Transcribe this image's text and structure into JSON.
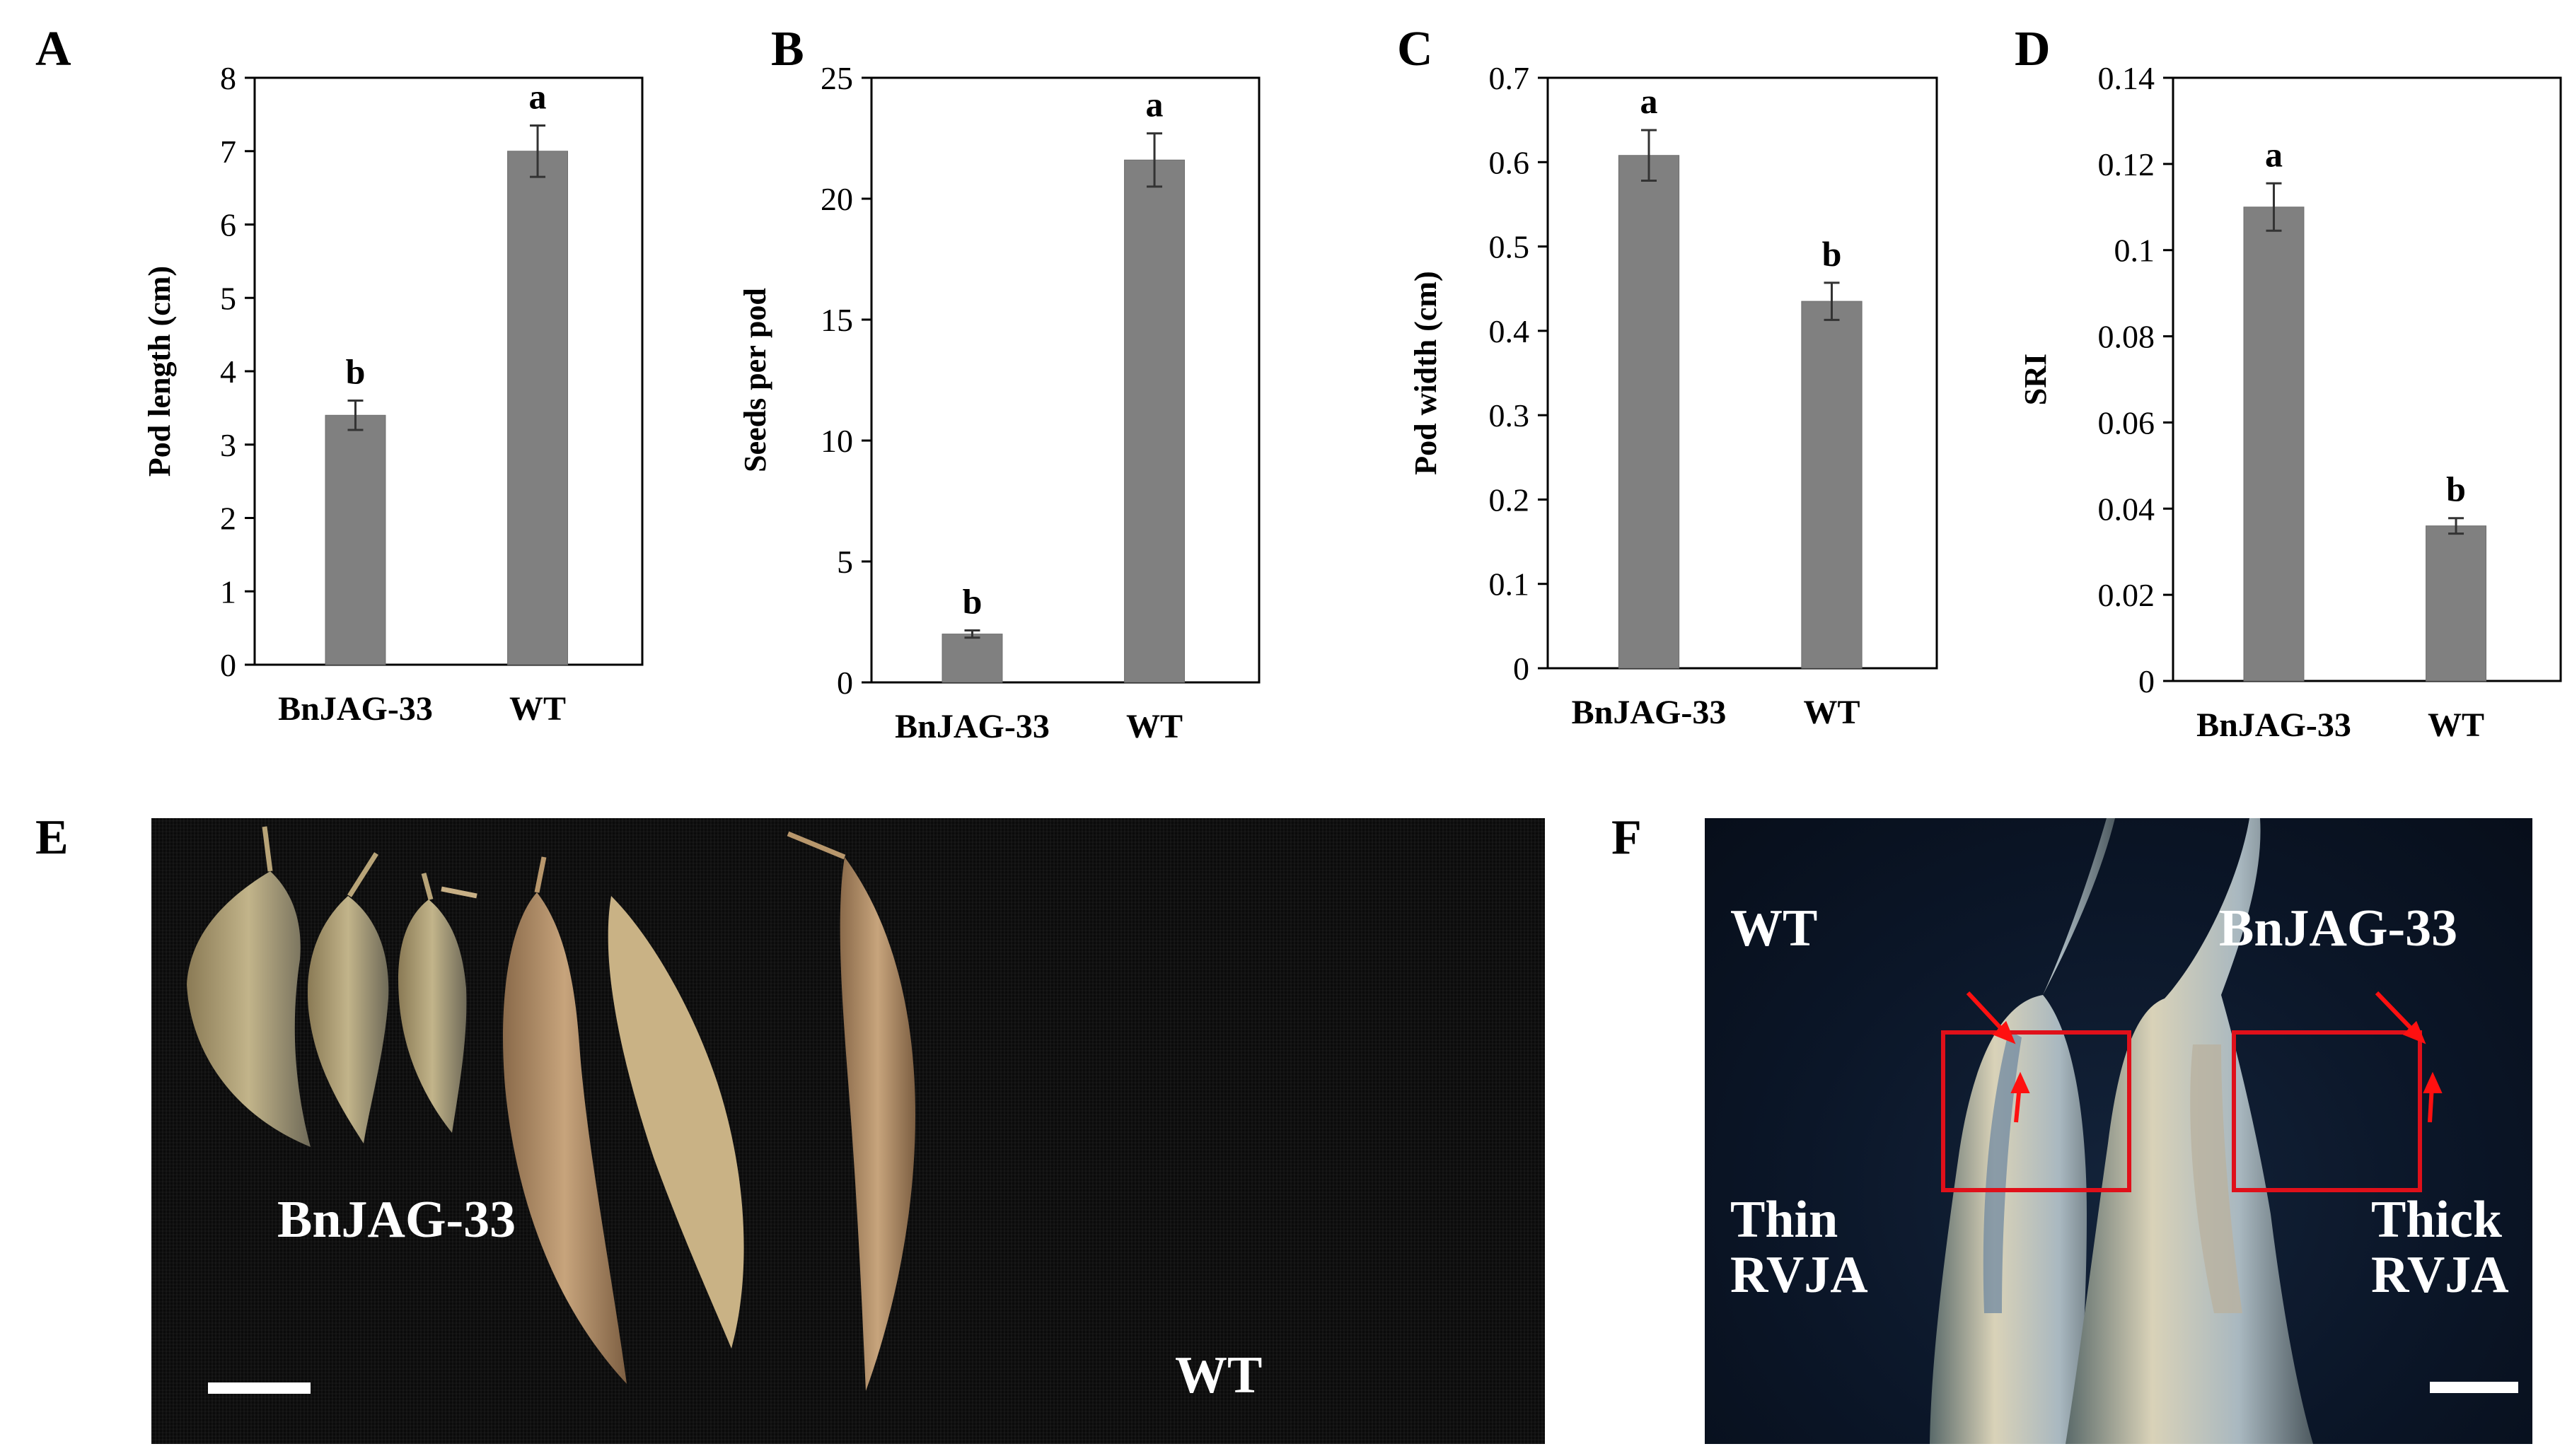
{
  "chart_data": [
    {
      "type": "bar",
      "panel": "A",
      "categories": [
        "BnJAG-33",
        "WT"
      ],
      "values": [
        3.4,
        7.0
      ],
      "errors": [
        0.2,
        0.35
      ],
      "significance": [
        "b",
        "a"
      ],
      "ylabel": "Pod length (cm)",
      "ylim": [
        0,
        8
      ],
      "yticks": [
        "0",
        "1",
        "2",
        "3",
        "4",
        "5",
        "6",
        "7",
        "8"
      ],
      "bar_color": "#808080"
    },
    {
      "type": "bar",
      "panel": "B",
      "categories": [
        "BnJAG-33",
        "WT"
      ],
      "values": [
        2.0,
        21.6
      ],
      "errors": [
        0.15,
        1.1
      ],
      "significance": [
        "b",
        "a"
      ],
      "ylabel": "Seeds per pod",
      "ylim": [
        0,
        25
      ],
      "yticks": [
        "0",
        "5",
        "10",
        "15",
        "20",
        "25"
      ],
      "bar_color": "#808080"
    },
    {
      "type": "bar",
      "panel": "C",
      "categories": [
        "BnJAG-33",
        "WT"
      ],
      "values": [
        0.608,
        0.435
      ],
      "errors": [
        0.03,
        0.022
      ],
      "significance": [
        "a",
        "b"
      ],
      "ylabel": "Pod width (cm)",
      "ylim": [
        0,
        0.7
      ],
      "yticks": [
        "0",
        "0.1",
        "0.2",
        "0.3",
        "0.4",
        "0.5",
        "0.6",
        "0.7"
      ],
      "bar_color": "#808080"
    },
    {
      "type": "bar",
      "panel": "D",
      "categories": [
        "BnJAG-33",
        "WT"
      ],
      "values": [
        0.11,
        0.036
      ],
      "errors": [
        0.0055,
        0.0018
      ],
      "significance": [
        "a",
        "b"
      ],
      "ylabel": "SRI",
      "ylim": [
        0,
        0.14
      ],
      "yticks": [
        "0",
        "0.02",
        "0.04",
        "0.06",
        "0.08",
        "0.1",
        "0.12",
        "0.14"
      ],
      "bar_color": "#808080"
    }
  ],
  "photos": {
    "e": {
      "letter": "E",
      "label_left": "BnJAG-33",
      "label_right": "WT"
    },
    "f": {
      "letter": "F",
      "label_wt": "WT",
      "label_mut": "BnJAG-33",
      "label_thin": "Thin\nRVJA",
      "label_thick": "Thick\nRVJA"
    }
  },
  "colors": {
    "highlight_box": "#e0101a",
    "arrow": "#ff1010",
    "scale_bar": "#ffffff"
  }
}
